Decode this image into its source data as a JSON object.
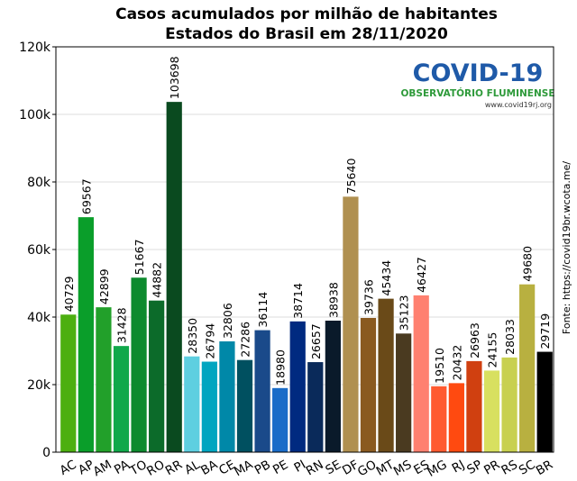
{
  "chart_data": {
    "type": "bar",
    "title": "Casos acumulados por milhão de habitantes",
    "subtitle": "Estados do Brasil em 28/11/2020",
    "categories": [
      "AC",
      "AP",
      "AM",
      "PA",
      "TO",
      "RO",
      "RR",
      "AL",
      "BA",
      "CE",
      "MA",
      "PB",
      "PE",
      "PI",
      "RN",
      "SE",
      "DF",
      "GO",
      "MT",
      "MS",
      "ES",
      "MG",
      "RJ",
      "SP",
      "PR",
      "RS",
      "SC",
      "BR"
    ],
    "values": [
      40729,
      69567,
      42899,
      31428,
      51667,
      44882,
      103698,
      28350,
      26794,
      32806,
      27286,
      36114,
      18980,
      38714,
      26657,
      38938,
      75640,
      39736,
      45434,
      35123,
      46427,
      19510,
      20432,
      26963,
      24155,
      28033,
      49680,
      29719
    ],
    "colors": [
      "#4caf10",
      "#0a9e2a",
      "#22a02a",
      "#10a84a",
      "#0d8a2e",
      "#0c6b2a",
      "#0a4a1f",
      "#5ecfe0",
      "#00a5c0",
      "#0088a8",
      "#005060",
      "#1a4a8a",
      "#1a6cc8",
      "#002a80",
      "#0a2a5a",
      "#0a1a2a",
      "#b09050",
      "#8a5a20",
      "#6a4a18",
      "#4a3a20",
      "#ff8070",
      "#ff5a30",
      "#ff4a10",
      "#d04010",
      "#d8e060",
      "#c8d050",
      "#b8b040",
      "#000000"
    ],
    "ylim": [
      0,
      120000
    ],
    "yticks": [
      0,
      {
        "value": 20000,
        "label": "20k"
      },
      {
        "value": 40000,
        "label": "40k"
      },
      {
        "value": 60000,
        "label": "60k"
      },
      {
        "value": 80000,
        "label": "80k"
      },
      {
        "value": 100000,
        "label": "100k"
      },
      {
        "value": 120000,
        "label": "120k"
      }
    ],
    "grid": true,
    "logo": {
      "title": "COVID-19",
      "subtitle": "OBSERVATÓRIO FLUMINENSE",
      "url": "www.covid19rj.org"
    },
    "source": "Fonte: https://covid19br.wcota.me/"
  }
}
